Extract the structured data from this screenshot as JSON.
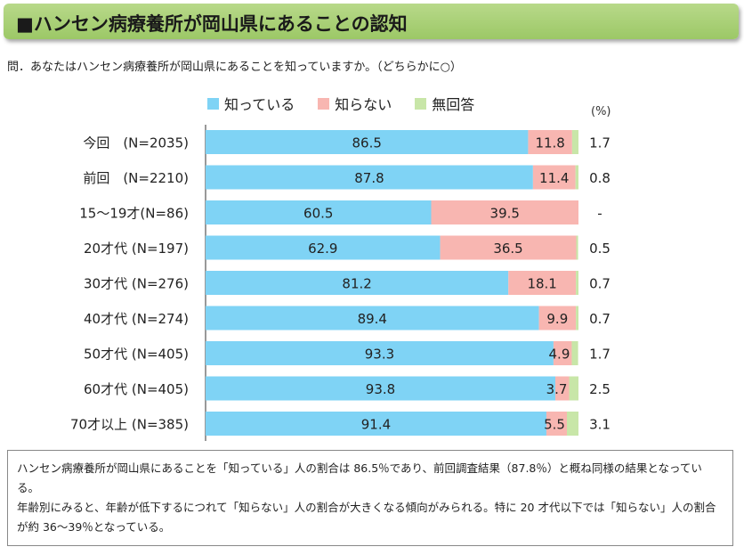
{
  "header": {
    "title": "■ハンセン病療養所が岡山県にあることの認知"
  },
  "question": "問．あなたはハンセン病療養所が岡山県にあることを知っていますか。（どちらかに○）",
  "unit_label": "(%)",
  "colors": {
    "known": "#7fd3f5",
    "unknown": "#f8b6b1",
    "no_answer": "#c8e6a8"
  },
  "chart_data": {
    "type": "bar",
    "orientation": "horizontal",
    "stacked": true,
    "percent": true,
    "categories": [
      "今回　(N=2035)",
      "前回　(N=2210)",
      "15～19才(N=86)",
      "20才代 (N=197)",
      "30才代 (N=276)",
      "40才代 (N=274)",
      "50才代 (N=405)",
      "60才代 (N=405)",
      "70才以上 (N=385)"
    ],
    "series": [
      {
        "name": "知っている",
        "values": [
          86.5,
          87.8,
          60.5,
          62.9,
          81.2,
          89.4,
          93.3,
          93.8,
          91.4
        ],
        "labels": [
          "86.5",
          "87.8",
          "60.5",
          "62.9",
          "81.2",
          "89.4",
          "93.3",
          "93.8",
          "91.4"
        ]
      },
      {
        "name": "知らない",
        "values": [
          11.8,
          11.4,
          39.5,
          36.5,
          18.1,
          9.9,
          4.9,
          3.7,
          5.5
        ],
        "labels": [
          "11.8",
          "11.4",
          "39.5",
          "36.5",
          "18.1",
          "9.9",
          "4.9",
          "3.7",
          "5.5"
        ]
      },
      {
        "name": "無回答",
        "values": [
          1.7,
          0.8,
          0,
          0.5,
          0.7,
          0.7,
          1.7,
          2.5,
          3.1
        ],
        "labels": [
          "1.7",
          "0.8",
          "-",
          "0.5",
          "0.7",
          "0.7",
          "1.7",
          "2.5",
          "3.1"
        ]
      }
    ],
    "xlim": [
      0,
      100
    ],
    "legend_position": "top"
  },
  "summary": [
    "ハンセン病療養所が岡山県にあることを「知っている」人の割合は 86.5％であり、前回調査結果（87.8％）と概ね同様の結果となっている。",
    "年齢別にみると、年齢が低下するにつれて「知らない」人の割合が大きくなる傾向がみられる。特に 20 才代以下では「知らない」人の割合が約 36～39％となっている。"
  ]
}
